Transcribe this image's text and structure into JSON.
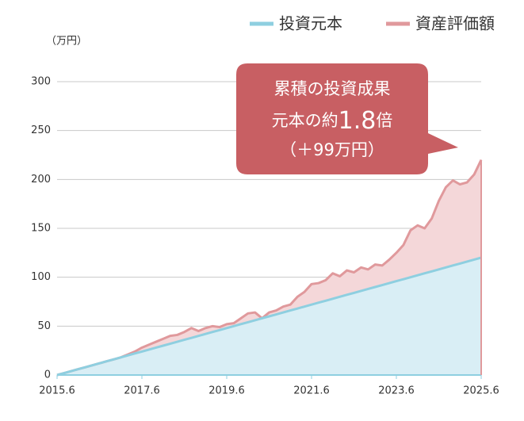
{
  "chart_data": {
    "type": "area",
    "unit_label": "（万円）",
    "x": [
      "2015.6",
      "2015.8",
      "2015.10",
      "2015.12",
      "2016.2",
      "2016.4",
      "2016.6",
      "2016.8",
      "2016.10",
      "2016.12",
      "2017.2",
      "2017.4",
      "2017.6",
      "2017.8",
      "2017.10",
      "2017.12",
      "2018.2",
      "2018.4",
      "2018.6",
      "2018.8",
      "2018.10",
      "2018.12",
      "2019.2",
      "2019.4",
      "2019.6",
      "2019.8",
      "2019.10",
      "2019.12",
      "2020.2",
      "2020.4",
      "2020.6",
      "2020.8",
      "2020.10",
      "2020.12",
      "2021.2",
      "2021.4",
      "2021.6",
      "2021.8",
      "2021.10",
      "2021.12",
      "2022.2",
      "2022.4",
      "2022.6",
      "2022.8",
      "2022.10",
      "2022.12",
      "2023.2",
      "2023.4",
      "2023.6",
      "2023.8",
      "2023.10",
      "2023.12",
      "2024.2",
      "2024.4",
      "2024.6",
      "2024.8",
      "2024.10",
      "2024.12",
      "2025.2",
      "2025.4",
      "2025.6"
    ],
    "xticks": [
      "2015.6",
      "2017.6",
      "2019.6",
      "2021.6",
      "2023.6",
      "2025.6"
    ],
    "series": [
      {
        "name": "投資元本",
        "color": "#8ecfe0",
        "fill": "#d9eef5",
        "values": [
          0,
          2,
          4,
          6,
          8,
          10,
          12,
          14,
          16,
          18,
          20,
          22,
          24,
          26,
          28,
          30,
          32,
          34,
          36,
          38,
          40,
          42,
          44,
          46,
          48,
          50,
          52,
          54,
          56,
          58,
          60,
          62,
          64,
          66,
          68,
          70,
          72,
          74,
          76,
          78,
          80,
          82,
          84,
          86,
          88,
          90,
          92,
          94,
          96,
          98,
          100,
          102,
          104,
          106,
          108,
          110,
          112,
          114,
          116,
          118,
          120
        ]
      },
      {
        "name": "資産評価額",
        "color": "#e0999c",
        "fill": "#f4d7d9",
        "values": [
          0,
          2,
          4,
          6,
          8,
          10,
          12,
          14,
          16,
          18,
          21,
          24,
          28,
          31,
          34,
          37,
          40,
          41,
          44,
          48,
          45,
          48,
          50,
          49,
          52,
          53,
          58,
          63,
          64,
          58,
          64,
          66,
          70,
          72,
          80,
          85,
          93,
          94,
          97,
          104,
          101,
          107,
          105,
          110,
          108,
          113,
          112,
          118,
          125,
          133,
          148,
          153,
          150,
          160,
          178,
          192,
          199,
          195,
          197,
          205,
          220
        ]
      }
    ],
    "ylim": [
      0,
      300
    ],
    "yticks": [
      0,
      50,
      100,
      150,
      200,
      250,
      300
    ],
    "grid": true,
    "callout": {
      "line1": "累積の投資成果",
      "line2_prefix": "元本の約",
      "line2_value": "1.8",
      "line2_suffix": "倍",
      "line3": "（＋99万円）"
    }
  }
}
